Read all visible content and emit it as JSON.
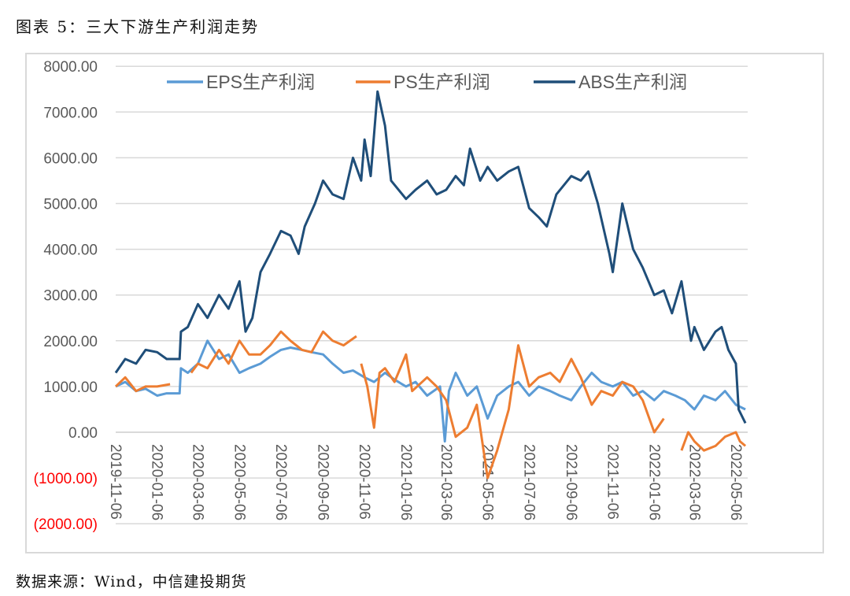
{
  "title": "图表 5：三大下游生产利润走势",
  "source": "数据来源：Wind，中信建投期货",
  "chart_data": {
    "type": "line",
    "title": "",
    "xlabel": "",
    "ylabel": "",
    "ylim": [
      -2000,
      8000
    ],
    "yticks": [
      8000,
      7000,
      6000,
      5000,
      4000,
      3000,
      2000,
      1000,
      0,
      -1000,
      -2000
    ],
    "ytick_labels": [
      "8000.00",
      "7000.00",
      "6000.00",
      "5000.00",
      "4000.00",
      "3000.00",
      "2000.00",
      "1000.00",
      "0.00",
      "(1000.00)",
      "(2000.00)"
    ],
    "negative_label_color": "#ff0000",
    "xlim": [
      "2019-11-06",
      "2022-05-20"
    ],
    "xtick_labels": [
      "2019-11-06",
      "2020-01-06",
      "2020-03-06",
      "2020-05-06",
      "2020-07-06",
      "2020-09-06",
      "2020-11-06",
      "2021-01-06",
      "2021-03-06",
      "2021-05-06",
      "2021-07-06",
      "2021-09-06",
      "2021-11-06",
      "2022-01-06",
      "2022-03-06",
      "2022-05-06"
    ],
    "grid": "horizontal",
    "legend_position": "top",
    "series": [
      {
        "name": "EPS生产利润",
        "color": "#5b9bd5",
        "points": [
          [
            "2019-11-06",
            1000
          ],
          [
            "2019-11-20",
            1100
          ],
          [
            "2019-12-06",
            900
          ],
          [
            "2019-12-20",
            950
          ],
          [
            "2020-01-06",
            800
          ],
          [
            "2020-01-20",
            850
          ],
          [
            "2020-02-08",
            850
          ],
          [
            "2020-02-10",
            1400
          ],
          [
            "2020-02-20",
            1300
          ],
          [
            "2020-03-06",
            1500
          ],
          [
            "2020-03-20",
            2000
          ],
          [
            "2020-04-06",
            1600
          ],
          [
            "2020-04-20",
            1700
          ],
          [
            "2020-05-06",
            1300
          ],
          [
            "2020-05-20",
            1400
          ],
          [
            "2020-06-06",
            1500
          ],
          [
            "2020-06-20",
            1650
          ],
          [
            "2020-07-06",
            1800
          ],
          [
            "2020-07-20",
            1850
          ],
          [
            "2020-08-06",
            1800
          ],
          [
            "2020-08-20",
            1750
          ],
          [
            "2020-09-06",
            1700
          ],
          [
            "2020-09-20",
            1500
          ],
          [
            "2020-10-06",
            1300
          ],
          [
            "2020-10-20",
            1350
          ],
          [
            "2020-11-06",
            1200
          ],
          [
            "2020-11-20",
            1100
          ],
          [
            "2020-12-06",
            1300
          ],
          [
            "2020-12-20",
            1150
          ],
          [
            "2021-01-06",
            1000
          ],
          [
            "2021-01-20",
            1100
          ],
          [
            "2021-02-06",
            800
          ],
          [
            "2021-02-25",
            1000
          ],
          [
            "2021-03-04",
            -200
          ],
          [
            "2021-03-10",
            900
          ],
          [
            "2021-03-20",
            1300
          ],
          [
            "2021-04-06",
            800
          ],
          [
            "2021-04-20",
            1000
          ],
          [
            "2021-05-06",
            300
          ],
          [
            "2021-05-20",
            800
          ],
          [
            "2021-06-06",
            1000
          ],
          [
            "2021-06-20",
            1100
          ],
          [
            "2021-07-06",
            800
          ],
          [
            "2021-07-20",
            1000
          ],
          [
            "2021-08-06",
            900
          ],
          [
            "2021-08-20",
            800
          ],
          [
            "2021-09-06",
            700
          ],
          [
            "2021-09-20",
            1000
          ],
          [
            "2021-10-06",
            1300
          ],
          [
            "2021-10-20",
            1100
          ],
          [
            "2021-11-06",
            1000
          ],
          [
            "2021-11-20",
            1100
          ],
          [
            "2021-12-06",
            800
          ],
          [
            "2021-12-20",
            900
          ],
          [
            "2022-01-06",
            700
          ],
          [
            "2022-01-20",
            900
          ],
          [
            "2022-02-06",
            800
          ],
          [
            "2022-02-20",
            700
          ],
          [
            "2022-03-06",
            500
          ],
          [
            "2022-03-20",
            800
          ],
          [
            "2022-04-06",
            700
          ],
          [
            "2022-04-20",
            900
          ],
          [
            "2022-05-06",
            600
          ],
          [
            "2022-05-20",
            500
          ]
        ]
      },
      {
        "name": "PS生产利润",
        "color": "#ed7d31",
        "points": [
          [
            "2019-11-06",
            1000
          ],
          [
            "2019-11-20",
            1200
          ],
          [
            "2019-12-06",
            900
          ],
          [
            "2019-12-20",
            1000
          ],
          [
            "2020-01-06",
            1000
          ],
          [
            "2020-01-25",
            1050
          ],
          null,
          [
            "2020-02-25",
            1300
          ],
          [
            "2020-03-06",
            1500
          ],
          [
            "2020-03-20",
            1400
          ],
          [
            "2020-04-06",
            1800
          ],
          [
            "2020-04-20",
            1500
          ],
          [
            "2020-05-06",
            2000
          ],
          [
            "2020-05-20",
            1700
          ],
          [
            "2020-06-06",
            1700
          ],
          [
            "2020-06-20",
            1900
          ],
          [
            "2020-07-06",
            2200
          ],
          [
            "2020-07-20",
            2000
          ],
          [
            "2020-08-06",
            1800
          ],
          [
            "2020-08-20",
            1750
          ],
          [
            "2020-09-06",
            2200
          ],
          [
            "2020-09-20",
            2000
          ],
          [
            "2020-10-06",
            1900
          ],
          [
            "2020-10-25",
            2100
          ],
          null,
          [
            "2020-11-01",
            1500
          ],
          [
            "2020-11-10",
            1000
          ],
          [
            "2020-11-20",
            100
          ],
          [
            "2020-11-28",
            1300
          ],
          [
            "2020-12-06",
            1400
          ],
          [
            "2020-12-20",
            1100
          ],
          [
            "2021-01-06",
            1700
          ],
          [
            "2021-01-15",
            900
          ],
          [
            "2021-02-06",
            1200
          ],
          [
            "2021-02-20",
            1000
          ],
          [
            "2021-03-06",
            700
          ],
          [
            "2021-03-20",
            -100
          ],
          [
            "2021-04-06",
            100
          ],
          [
            "2021-04-20",
            600
          ],
          [
            "2021-05-06",
            -1000
          ],
          [
            "2021-05-20",
            -400
          ],
          [
            "2021-06-06",
            500
          ],
          [
            "2021-06-20",
            1900
          ],
          [
            "2021-07-06",
            1000
          ],
          [
            "2021-07-20",
            1200
          ],
          [
            "2021-08-06",
            1300
          ],
          [
            "2021-08-20",
            1100
          ],
          [
            "2021-09-06",
            1600
          ],
          [
            "2021-09-20",
            1200
          ],
          [
            "2021-10-06",
            600
          ],
          [
            "2021-10-20",
            900
          ],
          [
            "2021-11-06",
            800
          ],
          [
            "2021-11-20",
            1100
          ],
          [
            "2021-12-06",
            1000
          ],
          [
            "2021-12-20",
            700
          ],
          [
            "2022-01-06",
            0
          ],
          [
            "2022-01-20",
            300
          ],
          null,
          [
            "2022-02-15",
            -400
          ],
          [
            "2022-02-25",
            0
          ],
          [
            "2022-03-06",
            -200
          ],
          [
            "2022-03-20",
            -400
          ],
          [
            "2022-04-06",
            -300
          ],
          [
            "2022-04-20",
            -100
          ],
          [
            "2022-05-06",
            0
          ],
          [
            "2022-05-12",
            -200
          ],
          [
            "2022-05-20",
            -300
          ]
        ]
      },
      {
        "name": "ABS生产利润",
        "color": "#1f4e79",
        "points": [
          [
            "2019-11-06",
            1300
          ],
          [
            "2019-11-20",
            1600
          ],
          [
            "2019-12-06",
            1500
          ],
          [
            "2019-12-20",
            1800
          ],
          [
            "2020-01-06",
            1750
          ],
          [
            "2020-01-20",
            1600
          ],
          [
            "2020-02-08",
            1600
          ],
          [
            "2020-02-10",
            2200
          ],
          [
            "2020-02-20",
            2300
          ],
          [
            "2020-03-06",
            2800
          ],
          [
            "2020-03-20",
            2500
          ],
          [
            "2020-04-06",
            3000
          ],
          [
            "2020-04-20",
            2700
          ],
          [
            "2020-05-06",
            3300
          ],
          [
            "2020-05-15",
            2200
          ],
          [
            "2020-05-25",
            2500
          ],
          [
            "2020-06-06",
            3500
          ],
          [
            "2020-06-20",
            3900
          ],
          [
            "2020-07-06",
            4400
          ],
          [
            "2020-07-20",
            4300
          ],
          [
            "2020-08-01",
            3900
          ],
          [
            "2020-08-10",
            4500
          ],
          [
            "2020-08-25",
            5000
          ],
          [
            "2020-09-06",
            5500
          ],
          [
            "2020-09-20",
            5200
          ],
          [
            "2020-10-06",
            5100
          ],
          [
            "2020-10-20",
            6000
          ],
          [
            "2020-11-01",
            5500
          ],
          [
            "2020-11-06",
            6400
          ],
          [
            "2020-11-15",
            5600
          ],
          [
            "2020-11-25",
            7450
          ],
          [
            "2020-12-06",
            6700
          ],
          [
            "2020-12-15",
            5500
          ],
          [
            "2021-01-06",
            5100
          ],
          [
            "2021-01-20",
            5300
          ],
          [
            "2021-02-06",
            5500
          ],
          [
            "2021-02-20",
            5200
          ],
          [
            "2021-03-06",
            5300
          ],
          [
            "2021-03-20",
            5600
          ],
          [
            "2021-04-01",
            5400
          ],
          [
            "2021-04-10",
            6200
          ],
          [
            "2021-04-25",
            5500
          ],
          [
            "2021-05-06",
            5800
          ],
          [
            "2021-05-20",
            5500
          ],
          [
            "2021-06-06",
            5700
          ],
          [
            "2021-06-20",
            5800
          ],
          [
            "2021-07-06",
            4900
          ],
          [
            "2021-07-20",
            4700
          ],
          [
            "2021-08-01",
            4500
          ],
          [
            "2021-08-15",
            5200
          ],
          [
            "2021-09-06",
            5600
          ],
          [
            "2021-09-20",
            5500
          ],
          [
            "2021-10-01",
            5700
          ],
          [
            "2021-10-15",
            5000
          ],
          [
            "2021-11-01",
            3900
          ],
          [
            "2021-11-06",
            3500
          ],
          [
            "2021-11-20",
            5000
          ],
          [
            "2021-12-06",
            4000
          ],
          [
            "2021-12-20",
            3600
          ],
          [
            "2022-01-06",
            3000
          ],
          [
            "2022-01-20",
            3100
          ],
          [
            "2022-02-01",
            2600
          ],
          [
            "2022-02-15",
            3300
          ],
          [
            "2022-03-01",
            2000
          ],
          [
            "2022-03-06",
            2300
          ],
          [
            "2022-03-20",
            1800
          ],
          [
            "2022-04-06",
            2200
          ],
          [
            "2022-04-15",
            2300
          ],
          [
            "2022-04-25",
            1800
          ],
          [
            "2022-05-06",
            1500
          ],
          [
            "2022-05-10",
            500
          ],
          [
            "2022-05-20",
            200
          ]
        ]
      }
    ]
  }
}
